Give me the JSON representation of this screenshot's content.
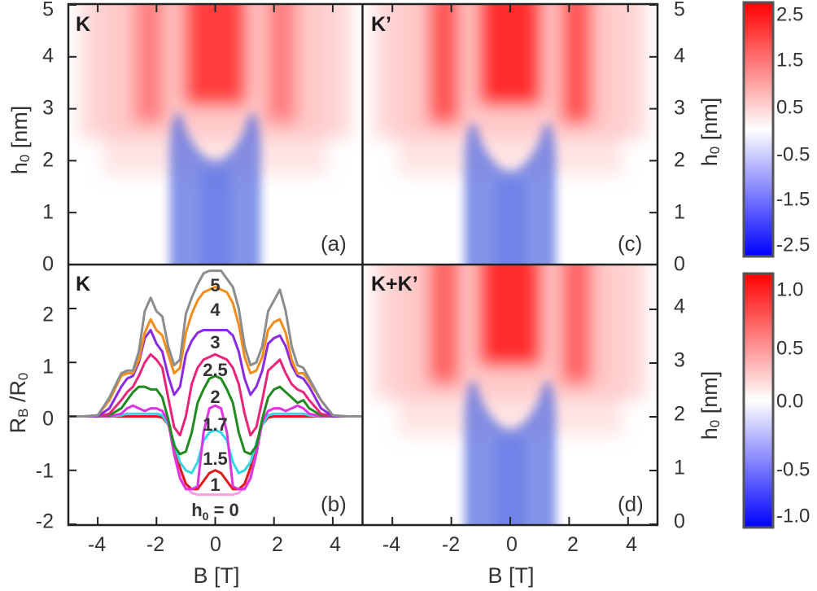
{
  "chart_data": [
    {
      "type": "heatmap",
      "panel": "(a)",
      "title": "K",
      "xlabel": "B [T]",
      "ylabel": "h0 [nm]",
      "xlim": [
        -5,
        5
      ],
      "ylim": [
        0,
        5
      ],
      "y_ticks": [
        "0",
        "1",
        "2",
        "3",
        "4",
        "5"
      ],
      "colorbar": "top"
    },
    {
      "type": "line",
      "panel": "(b)",
      "title": "K",
      "xlabel": "B [T]",
      "ylabel": "RB /R0",
      "xlim": [
        -5,
        5
      ],
      "ylim": [
        -2,
        2.8
      ],
      "x_ticks": [
        "-4",
        "-2",
        "0",
        "2",
        "4"
      ],
      "y_ticks": [
        "-2",
        "-1",
        "0",
        "1",
        "2"
      ],
      "curve_label_prefix": "h0 = ",
      "series": [
        {
          "name": "5",
          "label": "5",
          "color": "#8c8c8c",
          "x": [
            -5,
            -4.5,
            -4,
            -3.6,
            -3.2,
            -3,
            -2.8,
            -2.6,
            -2.4,
            -2.2,
            -2,
            -1.8,
            -1.6,
            -1.4,
            -1.2,
            -1,
            -0.8,
            -0.6,
            -0.4,
            -0.2,
            0,
            0.2,
            0.4,
            0.6,
            0.8,
            1,
            1.2,
            1.4,
            1.6,
            1.8,
            2,
            2.2,
            2.4,
            2.6,
            2.8,
            3,
            3.2,
            3.6,
            4,
            4.5,
            5
          ],
          "values": [
            0,
            0,
            0.02,
            0.35,
            0.8,
            0.85,
            0.85,
            1.2,
            1.95,
            2.2,
            1.95,
            1.85,
            1.3,
            0.95,
            1.05,
            1.9,
            2.2,
            2.45,
            2.65,
            2.7,
            2.7,
            2.7,
            2.55,
            2.4,
            2.0,
            1.3,
            0.95,
            1.0,
            1.3,
            1.95,
            2.15,
            2.35,
            1.95,
            1.3,
            0.95,
            0.9,
            0.7,
            0.3,
            0.02,
            0,
            0
          ]
        },
        {
          "name": "4",
          "label": "4",
          "color": "#f28c1a",
          "x": [
            -5,
            -4.5,
            -4,
            -3.6,
            -3.2,
            -3,
            -2.8,
            -2.6,
            -2.4,
            -2.2,
            -2,
            -1.8,
            -1.6,
            -1.4,
            -1.2,
            -1,
            -0.8,
            -0.6,
            -0.4,
            -0.2,
            0,
            0.2,
            0.4,
            0.6,
            0.8,
            1,
            1.2,
            1.4,
            1.6,
            1.8,
            2,
            2.2,
            2.4,
            2.6,
            2.8,
            3,
            3.2,
            3.6,
            4,
            4.5,
            5
          ],
          "values": [
            0,
            0,
            0.02,
            0.3,
            0.75,
            0.8,
            0.8,
            1.05,
            1.55,
            1.8,
            1.6,
            1.5,
            1.15,
            0.8,
            0.9,
            1.55,
            1.9,
            2.15,
            2.3,
            2.35,
            2.4,
            2.35,
            2.3,
            2.1,
            1.7,
            1.1,
            0.8,
            0.85,
            1.1,
            1.6,
            1.75,
            1.8,
            1.55,
            1.05,
            0.8,
            0.8,
            0.65,
            0.3,
            0.02,
            0,
            0
          ]
        },
        {
          "name": "3",
          "label": "3",
          "color": "#8a2be2",
          "x": [
            -5,
            -4.5,
            -4,
            -3.6,
            -3.2,
            -3,
            -2.8,
            -2.6,
            -2.4,
            -2.2,
            -2,
            -1.8,
            -1.6,
            -1.4,
            -1.2,
            -1,
            -0.8,
            -0.6,
            -0.4,
            -0.2,
            0,
            0.2,
            0.4,
            0.6,
            0.8,
            1,
            1.2,
            1.4,
            1.6,
            1.8,
            2,
            2.2,
            2.4,
            2.6,
            2.8,
            3,
            3.2,
            3.6,
            4,
            4.5,
            5
          ],
          "values": [
            0,
            0,
            0,
            0.15,
            0.55,
            0.7,
            0.75,
            1.0,
            1.45,
            1.6,
            1.35,
            1.2,
            0.75,
            0.4,
            0.55,
            1.15,
            1.4,
            1.55,
            1.6,
            1.6,
            1.6,
            1.6,
            1.6,
            1.5,
            1.2,
            0.7,
            0.4,
            0.55,
            0.85,
            1.35,
            1.45,
            1.5,
            1.3,
            0.95,
            0.75,
            0.7,
            0.55,
            0.15,
            0,
            0,
            0
          ]
        },
        {
          "name": "2.5",
          "label": "2.5",
          "color": "#e8257a",
          "x": [
            -5,
            -4.5,
            -4,
            -3.6,
            -3.2,
            -3,
            -2.8,
            -2.6,
            -2.4,
            -2.2,
            -2,
            -1.8,
            -1.6,
            -1.4,
            -1.2,
            -1,
            -0.8,
            -0.6,
            -0.4,
            -0.2,
            0,
            0.2,
            0.4,
            0.6,
            0.8,
            1,
            1.2,
            1.4,
            1.6,
            1.8,
            2,
            2.2,
            2.4,
            2.6,
            2.8,
            3,
            3.2,
            3.6,
            4,
            4.5,
            5
          ],
          "values": [
            0,
            0,
            0,
            0.05,
            0.3,
            0.45,
            0.55,
            0.75,
            1.0,
            1.15,
            1.05,
            0.9,
            0.35,
            -0.2,
            -0.35,
            0.0,
            0.6,
            0.9,
            1.05,
            1.1,
            1.15,
            1.1,
            1.05,
            0.9,
            0.6,
            0.05,
            -0.35,
            -0.2,
            0.3,
            0.85,
            0.95,
            1.05,
            0.8,
            0.6,
            0.5,
            0.45,
            0.3,
            0.05,
            0,
            0,
            0
          ]
        },
        {
          "name": "2",
          "label": "2",
          "color": "#1f8a1f",
          "x": [
            -5,
            -4.5,
            -4,
            -3.6,
            -3.2,
            -3,
            -2.8,
            -2.6,
            -2.4,
            -2.2,
            -2,
            -1.8,
            -1.6,
            -1.4,
            -1.2,
            -1,
            -0.8,
            -0.6,
            -0.4,
            -0.2,
            0,
            0.2,
            0.4,
            0.6,
            0.8,
            1,
            1.2,
            1.4,
            1.6,
            1.8,
            2,
            2.2,
            2.4,
            2.6,
            2.8,
            3,
            3.2,
            3.6,
            4,
            4.5,
            5
          ],
          "values": [
            0,
            0,
            0,
            0.02,
            0.15,
            0.3,
            0.45,
            0.55,
            0.55,
            0.5,
            0.5,
            0.35,
            -0.05,
            -0.55,
            -0.7,
            -0.65,
            -0.3,
            0.25,
            0.5,
            0.7,
            0.75,
            0.7,
            0.5,
            0.25,
            -0.3,
            -0.65,
            -0.7,
            -0.55,
            -0.05,
            0.35,
            0.5,
            0.55,
            0.45,
            0.35,
            0.25,
            0.3,
            0.15,
            0.02,
            0,
            0,
            0
          ]
        },
        {
          "name": "1.7",
          "label": "1.7",
          "color": "#e033e0",
          "x": [
            -5,
            -4.5,
            -4,
            -3.6,
            -3.2,
            -3,
            -2.8,
            -2.6,
            -2.4,
            -2.2,
            -2,
            -1.8,
            -1.6,
            -1.4,
            -1.2,
            -1,
            -0.8,
            -0.6,
            -0.4,
            -0.2,
            0,
            0.2,
            0.4,
            0.6,
            0.8,
            1,
            1.2,
            1.4,
            1.6,
            1.8,
            2,
            2.2,
            2.4,
            2.6,
            2.8,
            3,
            3.2,
            3.6,
            4,
            4.5,
            5
          ],
          "values": [
            0,
            0,
            0,
            0,
            0.05,
            0.15,
            0.2,
            0.15,
            0.1,
            0.15,
            0.15,
            0.1,
            -0.1,
            -0.7,
            -1.15,
            -1.35,
            -1.35,
            -1.3,
            -0.3,
            0.15,
            0.2,
            0.15,
            -0.3,
            -1.3,
            -1.35,
            -1.35,
            -1.15,
            -0.7,
            -0.1,
            0.1,
            0.15,
            0.15,
            0.1,
            0.15,
            0.2,
            0.15,
            0.05,
            0,
            0,
            0,
            0
          ]
        },
        {
          "name": "1.5",
          "label": "1.5",
          "color": "#33d6e6",
          "x": [
            -5,
            -4.5,
            -4,
            -3.6,
            -3.2,
            -3,
            -2.8,
            -2.6,
            -2.4,
            -2.2,
            -2,
            -1.8,
            -1.6,
            -1.4,
            -1.2,
            -1,
            -0.8,
            -0.6,
            -0.4,
            -0.2,
            0,
            0.2,
            0.4,
            0.6,
            0.8,
            1,
            1.2,
            1.4,
            1.6,
            1.8,
            2,
            2.2,
            2.4,
            2.6,
            2.8,
            3,
            3.2,
            3.6,
            4,
            4.5,
            5
          ],
          "values": [
            0,
            0,
            0,
            0,
            0.02,
            0.05,
            0.05,
            0.05,
            0.05,
            0.05,
            0.05,
            0.02,
            -0.15,
            -0.5,
            -0.85,
            -1.0,
            -1.05,
            -0.85,
            -0.45,
            -0.3,
            -0.25,
            -0.3,
            -0.45,
            -0.85,
            -1.05,
            -1.0,
            -0.85,
            -0.5,
            -0.15,
            0.02,
            0.05,
            0.05,
            0.05,
            0.05,
            0.05,
            0.05,
            0.02,
            0,
            0,
            0,
            0
          ]
        },
        {
          "name": "1",
          "label": "1",
          "color": "#e01a1a",
          "x": [
            -5,
            -4.5,
            -4,
            -3.6,
            -3.2,
            -3,
            -2.8,
            -2.6,
            -2.4,
            -2.2,
            -2,
            -1.8,
            -1.6,
            -1.4,
            -1.2,
            -1,
            -0.8,
            -0.6,
            -0.4,
            -0.2,
            0,
            0.2,
            0.4,
            0.6,
            0.8,
            1,
            1.2,
            1.4,
            1.6,
            1.8,
            2,
            2.2,
            2.4,
            2.6,
            2.8,
            3,
            3.2,
            3.6,
            4,
            4.5,
            5
          ],
          "values": [
            0,
            0,
            0,
            0,
            0,
            0,
            0,
            0,
            0,
            0,
            0,
            -0.02,
            -0.15,
            -0.5,
            -0.95,
            -1.25,
            -1.35,
            -1.35,
            -1.2,
            -1.05,
            -1.0,
            -1.05,
            -1.2,
            -1.35,
            -1.35,
            -1.25,
            -0.95,
            -0.5,
            -0.15,
            -0.02,
            0,
            0,
            0,
            0,
            0,
            0,
            0,
            0,
            0,
            0,
            0
          ]
        },
        {
          "name": "0",
          "label": "0",
          "color": "#f59ee0",
          "x": [
            -5,
            -4.5,
            -4,
            -3.6,
            -3.2,
            -3,
            -2.8,
            -2.6,
            -2.4,
            -2.2,
            -2,
            -1.8,
            -1.6,
            -1.4,
            -1.2,
            -1,
            -0.8,
            -0.6,
            -0.4,
            -0.2,
            0,
            0.2,
            0.4,
            0.6,
            0.8,
            1,
            1.2,
            1.4,
            1.6,
            1.8,
            2,
            2.2,
            2.4,
            2.6,
            2.8,
            3,
            3.2,
            3.6,
            4,
            4.5,
            5
          ],
          "values": [
            0,
            0,
            0,
            0,
            0,
            0,
            0,
            0,
            0,
            0,
            0,
            -0.02,
            -0.15,
            -0.55,
            -1.0,
            -1.3,
            -1.42,
            -1.45,
            -1.45,
            -1.45,
            -1.45,
            -1.45,
            -1.45,
            -1.45,
            -1.42,
            -1.3,
            -1.0,
            -0.55,
            -0.15,
            -0.02,
            0,
            0,
            0,
            0,
            0,
            0,
            0,
            0,
            0,
            0,
            0
          ]
        }
      ]
    },
    {
      "type": "heatmap",
      "panel": "(c)",
      "title": "K’",
      "xlabel": "B [T]",
      "ylabel": "h0 [nm]",
      "xlim": [
        -5,
        5
      ],
      "ylim": [
        0,
        5
      ],
      "colorbar": "top"
    },
    {
      "type": "heatmap",
      "panel": "(d)",
      "title": "K+K’",
      "xlabel": "B [T]",
      "ylabel": "h0 [nm]",
      "xlim": [
        -5,
        5
      ],
      "ylim": [
        0,
        4.8
      ],
      "x_ticks": [
        "-4",
        "-2",
        "0",
        "2",
        "4"
      ],
      "y_ticks": [
        "0",
        "1",
        "2",
        "3",
        "4"
      ],
      "colorbar": "bottom"
    }
  ],
  "shared": {
    "right_axis_top_ticks": [
      "0",
      "1",
      "2",
      "3",
      "4",
      "5"
    ],
    "right_axis_ylabel": "h0 [nm]",
    "xlabel": "B [T]"
  },
  "colorbars": {
    "top": {
      "range": [
        -2.5,
        2.5
      ],
      "tick_labels": [
        "2.5",
        "1.5",
        "0.5",
        "-0.5",
        "-1.5",
        "-2.5"
      ],
      "low_color": "#0000ff",
      "mid_color": "#ffffff",
      "high_color": "#ff0000"
    },
    "bottom": {
      "range": [
        -1.0,
        1.0
      ],
      "tick_labels": [
        "1.0",
        "0.5",
        "0.0",
        "-0.5",
        "-1.0"
      ],
      "low_color": "#0000ff",
      "mid_color": "#ffffff",
      "high_color": "#ff0000"
    }
  }
}
